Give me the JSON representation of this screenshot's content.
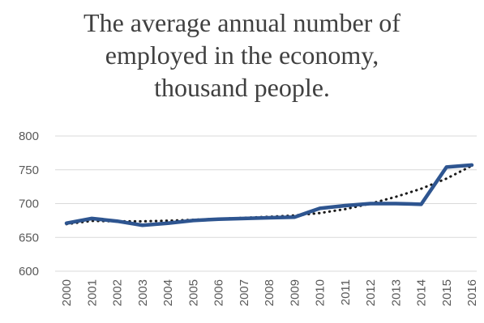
{
  "chart_data": {
    "type": "line",
    "title_lines": [
      "The average annual number of",
      "employed in the economy,",
      "thousand people."
    ],
    "xlabel": "",
    "ylabel": "",
    "ylim": [
      600,
      800
    ],
    "yticks": [
      "600",
      "650",
      "700",
      "750",
      "800"
    ],
    "categories": [
      "2000",
      "2001",
      "2002",
      "2003",
      "2004",
      "2005",
      "2006",
      "2007",
      "2008",
      "2009",
      "2010",
      "2011",
      "2012",
      "2013",
      "2014",
      "2015",
      "2016"
    ],
    "series": [
      {
        "values": [
          671,
          678,
          674,
          668,
          671,
          675,
          677,
          678,
          679,
          680,
          693,
          697,
          700,
          700,
          699,
          754,
          757
        ],
        "color": "#2E5590",
        "style": "solid"
      },
      {
        "values": [
          669.6,
          674.4,
          673.7,
          673.8,
          674.7,
          676.0,
          677.5,
          679.0,
          680.5,
          682.4,
          686.0,
          691.8,
          700.0,
          710.0,
          722.0,
          737.0,
          756.0
        ],
        "color": "#1a1a1a",
        "style": "dotted",
        "trendline": true
      }
    ],
    "grid": true,
    "legend": "none",
    "colors": {
      "gridline": "#D9D9D9",
      "text": "#595959",
      "title": "#404040"
    }
  }
}
